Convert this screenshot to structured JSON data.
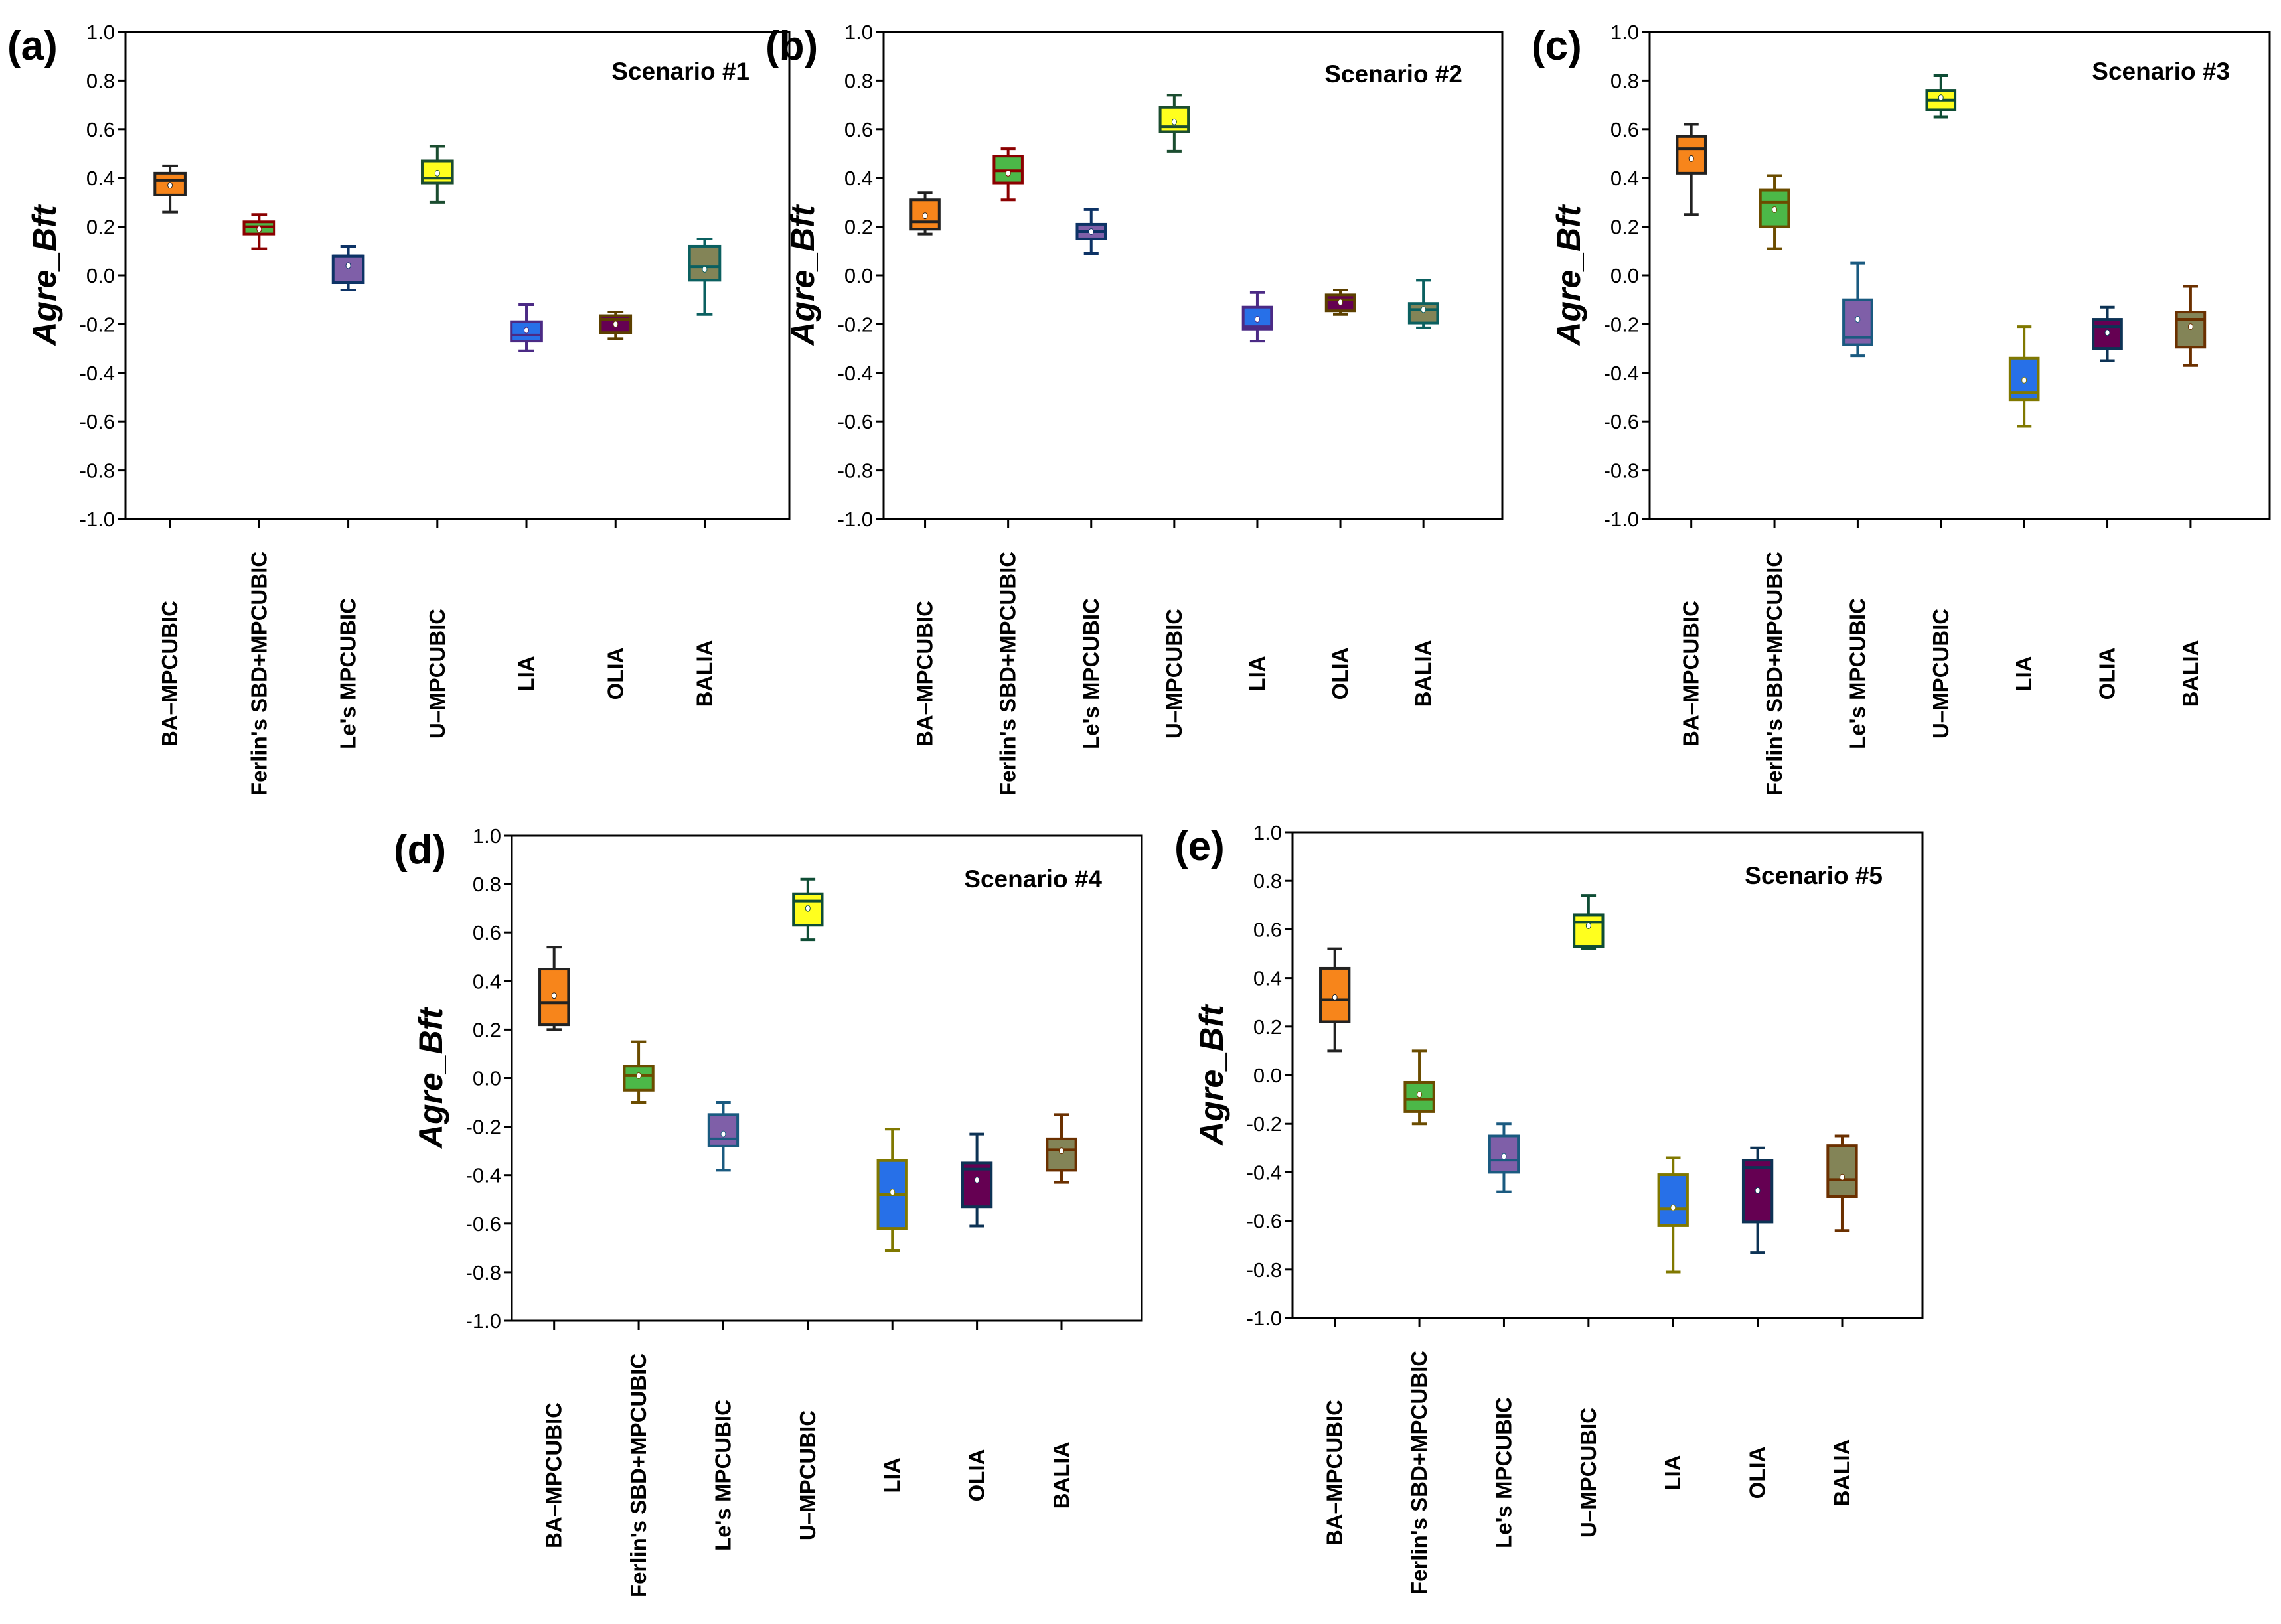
{
  "chart_data": [
    {
      "type": "box",
      "panel": "(a)",
      "title": "Scenario #1",
      "ylabel": "Agre_Bft",
      "xlabel": "",
      "ylim": [
        -1.0,
        1.0
      ],
      "yticks": [
        1.0,
        0.8,
        0.6,
        0.4,
        0.2,
        0.0,
        -0.2,
        -0.4,
        -0.6,
        -0.8,
        -1.0
      ],
      "grid": false,
      "categories": [
        "BA–MPCUBIC",
        "Ferlin's SBD+MPCUBIC",
        "Le's MPCUBIC",
        "U–MPCUBIC",
        "LIA",
        "OLIA",
        "BALIA"
      ],
      "series": [
        {
          "name": "BA–MPCUBIC",
          "whisker_low": 0.26,
          "q1": 0.33,
          "median": 0.39,
          "q3": 0.42,
          "whisker_high": 0.45,
          "mean": 0.37,
          "fill": "#F7851B",
          "edge": "#222222"
        },
        {
          "name": "Ferlin's SBD+MPCUBIC",
          "whisker_low": 0.11,
          "q1": 0.17,
          "median": 0.2,
          "q3": 0.22,
          "whisker_high": 0.25,
          "mean": 0.19,
          "fill": "#4CB848",
          "edge": "#8B0000"
        },
        {
          "name": "Le's MPCUBIC",
          "whisker_low": -0.06,
          "q1": -0.03,
          "median": 0.08,
          "q3": 0.08,
          "whisker_high": 0.12,
          "mean": 0.04,
          "fill": "#7F5FA8",
          "edge": "#0D3366"
        },
        {
          "name": "U–MPCUBIC",
          "whisker_low": 0.3,
          "q1": 0.38,
          "median": 0.4,
          "q3": 0.47,
          "whisker_high": 0.53,
          "mean": 0.42,
          "fill": "#FFFF1E",
          "edge": "#1B4D30"
        },
        {
          "name": "LIA",
          "whisker_low": -0.31,
          "q1": -0.27,
          "median": -0.245,
          "q3": -0.19,
          "whisker_high": -0.12,
          "mean": -0.225,
          "fill": "#2770E8",
          "edge": "#4B2A85"
        },
        {
          "name": "OLIA",
          "whisker_low": -0.26,
          "q1": -0.235,
          "median": -0.18,
          "q3": -0.165,
          "whisker_high": -0.15,
          "mean": -0.2,
          "fill": "#650052",
          "edge": "#5C4000"
        },
        {
          "name": "BALIA",
          "whisker_low": -0.16,
          "q1": -0.02,
          "median": 0.035,
          "q3": 0.12,
          "whisker_high": 0.15,
          "mean": 0.025,
          "fill": "#838457",
          "edge": "#0B6060"
        }
      ]
    },
    {
      "type": "box",
      "panel": "(b)",
      "title": "Scenario #2",
      "ylabel": "Agre_Bft",
      "xlabel": "",
      "ylim": [
        -1.0,
        1.0
      ],
      "yticks": [
        1.0,
        0.8,
        0.6,
        0.4,
        0.2,
        0.0,
        -0.2,
        -0.4,
        -0.6,
        -0.8,
        -1.0
      ],
      "grid": false,
      "categories": [
        "BA–MPCUBIC",
        "Ferlin's SBD+MPCUBIC",
        "Le's MPCUBIC",
        "U–MPCUBIC",
        "LIA",
        "OLIA",
        "BALIA"
      ],
      "series": [
        {
          "name": "BA–MPCUBIC",
          "whisker_low": 0.17,
          "q1": 0.19,
          "median": 0.22,
          "q3": 0.31,
          "whisker_high": 0.34,
          "mean": 0.245,
          "fill": "#F7851B",
          "edge": "#222222"
        },
        {
          "name": "Ferlin's SBD+MPCUBIC",
          "whisker_low": 0.31,
          "q1": 0.38,
          "median": 0.43,
          "q3": 0.49,
          "whisker_high": 0.52,
          "mean": 0.42,
          "fill": "#4CB848",
          "edge": "#8B0000"
        },
        {
          "name": "Le's MPCUBIC",
          "whisker_low": 0.09,
          "q1": 0.15,
          "median": 0.18,
          "q3": 0.21,
          "whisker_high": 0.27,
          "mean": 0.18,
          "fill": "#7F5FA8",
          "edge": "#0D3366"
        },
        {
          "name": "U–MPCUBIC",
          "whisker_low": 0.51,
          "q1": 0.59,
          "median": 0.61,
          "q3": 0.69,
          "whisker_high": 0.74,
          "mean": 0.63,
          "fill": "#FFFF1E",
          "edge": "#1B4D30"
        },
        {
          "name": "LIA",
          "whisker_low": -0.27,
          "q1": -0.22,
          "median": -0.21,
          "q3": -0.13,
          "whisker_high": -0.07,
          "mean": -0.18,
          "fill": "#2770E8",
          "edge": "#4B2A85"
        },
        {
          "name": "OLIA",
          "whisker_low": -0.16,
          "q1": -0.145,
          "median": -0.1,
          "q3": -0.08,
          "whisker_high": -0.06,
          "mean": -0.11,
          "fill": "#650052",
          "edge": "#5C4000"
        },
        {
          "name": "BALIA",
          "whisker_low": -0.215,
          "q1": -0.195,
          "median": -0.14,
          "q3": -0.115,
          "whisker_high": -0.02,
          "mean": -0.14,
          "fill": "#838457",
          "edge": "#0B6060"
        }
      ]
    },
    {
      "type": "box",
      "panel": "(c)",
      "title": "Scenario #3",
      "ylabel": "Agre_Bft",
      "xlabel": "",
      "ylim": [
        -1.0,
        1.0
      ],
      "yticks": [
        1.0,
        0.8,
        0.6,
        0.4,
        0.2,
        0.0,
        -0.2,
        -0.4,
        -0.6,
        -0.8,
        -1.0
      ],
      "grid": false,
      "categories": [
        "BA–MPCUBIC",
        "Ferlin's SBD+MPCUBIC",
        "Le's MPCUBIC",
        "U–MPCUBIC",
        "LIA",
        "OLIA",
        "BALIA"
      ],
      "series": [
        {
          "name": "BA–MPCUBIC",
          "whisker_low": 0.25,
          "q1": 0.42,
          "median": 0.52,
          "q3": 0.57,
          "whisker_high": 0.62,
          "mean": 0.48,
          "fill": "#F7851B",
          "edge": "#222222"
        },
        {
          "name": "Ferlin's SBD+MPCUBIC",
          "whisker_low": 0.11,
          "q1": 0.2,
          "median": 0.3,
          "q3": 0.35,
          "whisker_high": 0.41,
          "mean": 0.27,
          "fill": "#4CB848",
          "edge": "#6B4C00"
        },
        {
          "name": "Le's MPCUBIC",
          "whisker_low": -0.33,
          "q1": -0.285,
          "median": -0.255,
          "q3": -0.1,
          "whisker_high": 0.05,
          "mean": -0.18,
          "fill": "#7F5FA8",
          "edge": "#1A5A80"
        },
        {
          "name": "U–MPCUBIC",
          "whisker_low": 0.65,
          "q1": 0.68,
          "median": 0.72,
          "q3": 0.76,
          "whisker_high": 0.82,
          "mean": 0.73,
          "fill": "#FFFF1E",
          "edge": "#0F4D35"
        },
        {
          "name": "LIA",
          "whisker_low": -0.62,
          "q1": -0.51,
          "median": -0.48,
          "q3": -0.34,
          "whisker_high": -0.21,
          "mean": -0.43,
          "fill": "#2770E8",
          "edge": "#807800"
        },
        {
          "name": "OLIA",
          "whisker_low": -0.35,
          "q1": -0.3,
          "median": -0.21,
          "q3": -0.18,
          "whisker_high": -0.13,
          "mean": -0.235,
          "fill": "#650052",
          "edge": "#0D3355"
        },
        {
          "name": "BALIA",
          "whisker_low": -0.37,
          "q1": -0.295,
          "median": -0.18,
          "q3": -0.15,
          "whisker_high": -0.045,
          "mean": -0.21,
          "fill": "#838457",
          "edge": "#6B3000"
        }
      ]
    },
    {
      "type": "box",
      "panel": "(d)",
      "title": "Scenario #4",
      "ylabel": "Agre_Bft",
      "xlabel": "",
      "ylim": [
        -1.0,
        1.0
      ],
      "yticks": [
        1.0,
        0.8,
        0.6,
        0.4,
        0.2,
        0.0,
        -0.2,
        -0.4,
        -0.6,
        -0.8,
        -1.0
      ],
      "grid": false,
      "categories": [
        "BA–MPCUBIC",
        "Ferlin's SBD+MPCUBIC",
        "Le's MPCUBIC",
        "U–MPCUBIC",
        "LIA",
        "OLIA",
        "BALIA"
      ],
      "series": [
        {
          "name": "BA–MPCUBIC",
          "whisker_low": 0.2,
          "q1": 0.22,
          "median": 0.31,
          "q3": 0.45,
          "whisker_high": 0.54,
          "mean": 0.34,
          "fill": "#F7851B",
          "edge": "#222222"
        },
        {
          "name": "Ferlin's SBD+MPCUBIC",
          "whisker_low": -0.1,
          "q1": -0.05,
          "median": 0.01,
          "q3": 0.05,
          "whisker_high": 0.15,
          "mean": 0.01,
          "fill": "#4CB848",
          "edge": "#6B4C00"
        },
        {
          "name": "Le's MPCUBIC",
          "whisker_low": -0.38,
          "q1": -0.28,
          "median": -0.25,
          "q3": -0.15,
          "whisker_high": -0.1,
          "mean": -0.23,
          "fill": "#7F5FA8",
          "edge": "#1A5A80"
        },
        {
          "name": "U–MPCUBIC",
          "whisker_low": 0.57,
          "q1": 0.63,
          "median": 0.73,
          "q3": 0.76,
          "whisker_high": 0.82,
          "mean": 0.7,
          "fill": "#FFFF1E",
          "edge": "#0F4D35"
        },
        {
          "name": "LIA",
          "whisker_low": -0.71,
          "q1": -0.62,
          "median": -0.48,
          "q3": -0.34,
          "whisker_high": -0.21,
          "mean": -0.47,
          "fill": "#2770E8",
          "edge": "#807800"
        },
        {
          "name": "OLIA",
          "whisker_low": -0.61,
          "q1": -0.53,
          "median": -0.375,
          "q3": -0.35,
          "whisker_high": -0.23,
          "mean": -0.42,
          "fill": "#650052",
          "edge": "#0D3355"
        },
        {
          "name": "BALIA",
          "whisker_low": -0.43,
          "q1": -0.38,
          "median": -0.295,
          "q3": -0.25,
          "whisker_high": -0.15,
          "mean": -0.3,
          "fill": "#838457",
          "edge": "#6B3000"
        }
      ]
    },
    {
      "type": "box",
      "panel": "(e)",
      "title": "Scenario #5",
      "ylabel": "Agre_Bft",
      "xlabel": "",
      "ylim": [
        -1.0,
        1.0
      ],
      "yticks": [
        1.0,
        0.8,
        0.6,
        0.4,
        0.2,
        0.0,
        -0.2,
        -0.4,
        -0.6,
        -0.8,
        -1.0
      ],
      "grid": false,
      "categories": [
        "BA–MPCUBIC",
        "Ferlin's SBD+MPCUBIC",
        "Le's MPCUBIC",
        "U–MPCUBIC",
        "LIA",
        "OLIA",
        "BALIA"
      ],
      "series": [
        {
          "name": "BA–MPCUBIC",
          "whisker_low": 0.1,
          "q1": 0.22,
          "median": 0.31,
          "q3": 0.44,
          "whisker_high": 0.52,
          "mean": 0.32,
          "fill": "#F7851B",
          "edge": "#222222"
        },
        {
          "name": "Ferlin's SBD+MPCUBIC",
          "whisker_low": -0.2,
          "q1": -0.15,
          "median": -0.1,
          "q3": -0.03,
          "whisker_high": 0.1,
          "mean": -0.08,
          "fill": "#4CB848",
          "edge": "#6B4C00"
        },
        {
          "name": "Le's MPCUBIC",
          "whisker_low": -0.48,
          "q1": -0.4,
          "median": -0.35,
          "q3": -0.25,
          "whisker_high": -0.2,
          "mean": -0.335,
          "fill": "#7F5FA8",
          "edge": "#1A5A80"
        },
        {
          "name": "U–MPCUBIC",
          "whisker_low": 0.52,
          "q1": 0.53,
          "median": 0.63,
          "q3": 0.66,
          "whisker_high": 0.74,
          "mean": 0.615,
          "fill": "#FFFF1E",
          "edge": "#0F4D35"
        },
        {
          "name": "LIA",
          "whisker_low": -0.81,
          "q1": -0.62,
          "median": -0.55,
          "q3": -0.41,
          "whisker_high": -0.34,
          "mean": -0.545,
          "fill": "#2770E8",
          "edge": "#807800"
        },
        {
          "name": "OLIA",
          "whisker_low": -0.73,
          "q1": -0.605,
          "median": -0.38,
          "q3": -0.35,
          "whisker_high": -0.3,
          "mean": -0.475,
          "fill": "#650052",
          "edge": "#0D3355"
        },
        {
          "name": "BALIA",
          "whisker_low": -0.64,
          "q1": -0.5,
          "median": -0.43,
          "q3": -0.29,
          "whisker_high": -0.25,
          "mean": -0.42,
          "fill": "#838457",
          "edge": "#6B3000"
        }
      ]
    }
  ]
}
